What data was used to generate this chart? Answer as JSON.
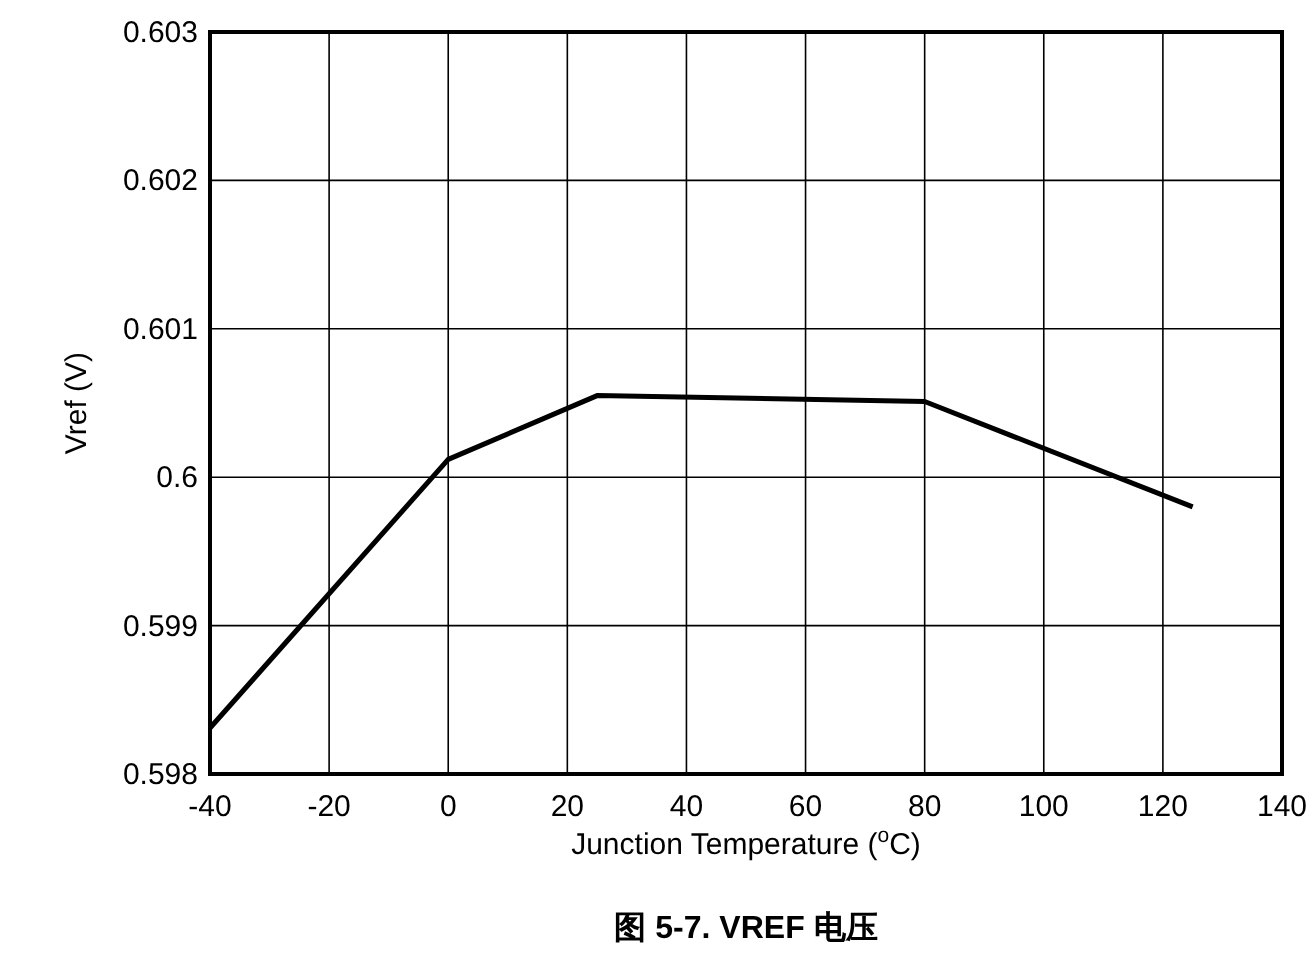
{
  "chart_data": {
    "type": "line",
    "title": "图 5-7. VREF 电压",
    "xlabel": "Junction Temperature ($^{o}$C)",
    "ylabel": "Vref (V)",
    "x": [
      -40,
      0,
      25,
      80,
      125
    ],
    "series": [
      {
        "color": "#000000",
        "values": [
          0.59831,
          0.60012,
          0.60055,
          0.60051,
          0.5998
        ]
      }
    ],
    "xlim": [
      -40,
      140
    ],
    "xticks": [
      -40,
      -20,
      0,
      20,
      40,
      60,
      80,
      100,
      120,
      140
    ],
    "ylim": [
      0.598,
      0.603
    ],
    "yticks": [
      0.598,
      0.599,
      0.6,
      0.601,
      0.602,
      0.603
    ],
    "grid": true,
    "marker": "none",
    "line_style": "solid"
  }
}
